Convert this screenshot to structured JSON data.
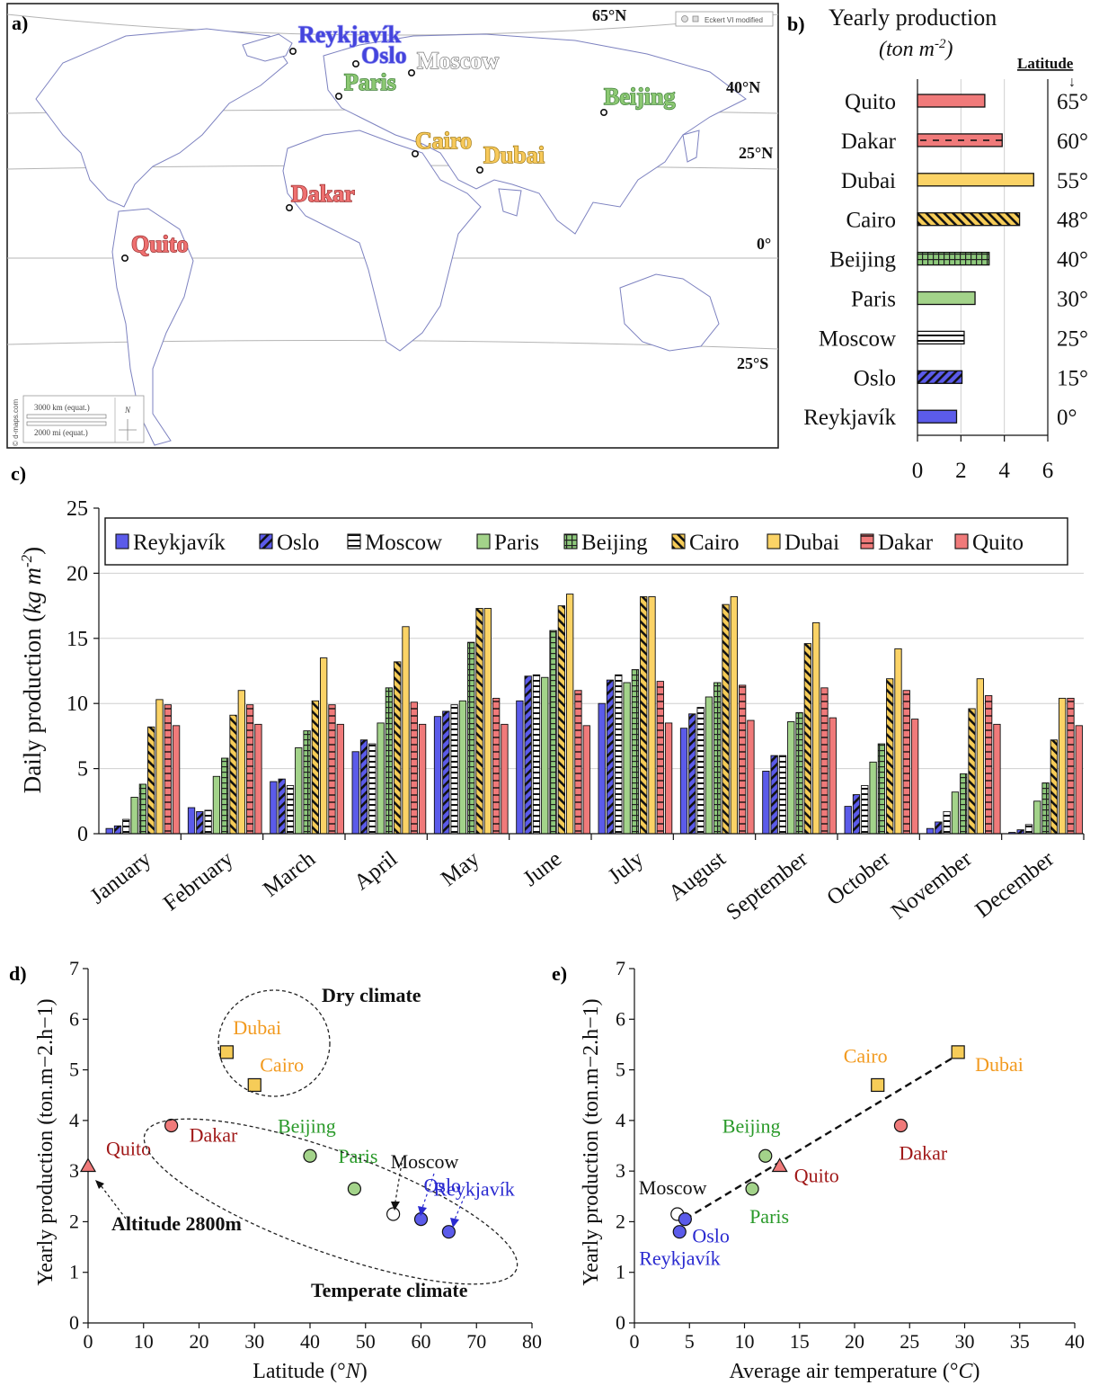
{
  "colors": {
    "reykjavik": "#5b5bea",
    "oslo": "#5b5bea",
    "moscow": "#ffffff",
    "paris": "#a3d38a",
    "beijing": "#8ec97c",
    "cairo": "#f6cc58",
    "dubai": "#fbd366",
    "dakar": "#f07a7a",
    "quito": "#f07a7a",
    "map_land_line": "#8a8fc4",
    "grid": "#cccccc"
  },
  "panel_a": {
    "label": "a)",
    "credit": "© d-maps.com",
    "projection": "Eckert VI modified",
    "scale_km": "3000 km (equat.)",
    "scale_mi": "2000 mi (equat.)",
    "north": "N",
    "latitudes": [
      "65°N",
      "40°N",
      "25°N",
      "0°",
      "25°S"
    ],
    "cities": [
      {
        "name": "Reykjavík",
        "color": "#4444dd",
        "stroke": "#9a9af0"
      },
      {
        "name": "Oslo",
        "color": "#4444dd",
        "stroke": "#9a9af0"
      },
      {
        "name": "Moscow",
        "color": "#ffffff",
        "stroke": "#7a7a7a"
      },
      {
        "name": "Paris",
        "color": "#8cc873",
        "stroke": "#3f7f3a"
      },
      {
        "name": "Beijing",
        "color": "#8cc873",
        "stroke": "#3f7f3a"
      },
      {
        "name": "Cairo",
        "color": "#f7c95a",
        "stroke": "#a07a18"
      },
      {
        "name": "Dubai",
        "color": "#f7c95a",
        "stroke": "#a07a18"
      },
      {
        "name": "Dakar",
        "color": "#ee7070",
        "stroke": "#9a2f2f"
      },
      {
        "name": "Quito",
        "color": "#ee7070",
        "stroke": "#9a2f2f"
      }
    ]
  },
  "panel_b": {
    "label": "b)",
    "title_line1": "Yearly production",
    "title_line2_a": "(ton m",
    "title_line2_sup": "-2",
    "title_line2_b": ")",
    "latitude_header": "Latitude",
    "arrow": "↓",
    "xticks": [
      "0",
      "2",
      "4",
      "6"
    ]
  },
  "panel_c": {
    "label": "c)",
    "ylabel_a": "Daily production (",
    "ylabel_unit": "kg m",
    "ylabel_sup": "-2",
    "ylabel_b": ")",
    "yticks": [
      "0",
      "5",
      "10",
      "15",
      "20",
      "25"
    ]
  },
  "panel_d": {
    "label": "d)",
    "xlabel_a": "Latitude (°",
    "xlabel_unit": "N",
    "xlabel_b": ")",
    "ylabel": "Yearly production (ton.m−2.h−1)",
    "xticks": [
      "0",
      "10",
      "20",
      "30",
      "40",
      "50",
      "60",
      "70",
      "80"
    ],
    "yticks": [
      "0",
      "1",
      "2",
      "3",
      "4",
      "5",
      "6",
      "7"
    ],
    "annotations": {
      "dry": "Dry climate",
      "temperate": "Temperate climate",
      "altitude": "Altitude 2800m"
    }
  },
  "panel_e": {
    "label": "e)",
    "xlabel_a": "Average air temperature (°",
    "xlabel_unit": "C",
    "xlabel_b": ")",
    "ylabel": "Yearly production (ton.m−2.h−1)",
    "xticks": [
      "0",
      "5",
      "10",
      "15",
      "20",
      "25",
      "30",
      "35",
      "40"
    ],
    "yticks": [
      "0",
      "1",
      "2",
      "3",
      "4",
      "5",
      "6",
      "7"
    ]
  },
  "chart_data": [
    {
      "id": "b",
      "type": "bar",
      "orientation": "horizontal",
      "title": "Yearly production (ton m-2)",
      "categories": [
        "Quito",
        "Dakar",
        "Dubai",
        "Cairo",
        "Beijing",
        "Paris",
        "Moscow",
        "Oslo",
        "Reykjavík"
      ],
      "values": [
        3.1,
        3.9,
        5.35,
        4.7,
        3.3,
        2.65,
        2.15,
        2.05,
        1.8
      ],
      "latitude_labels": [
        "65°",
        "60°",
        "55°",
        "48°",
        "40°",
        "30°",
        "25°",
        "15°",
        "0°"
      ],
      "xlim": [
        0,
        6
      ],
      "grid": "vertical"
    },
    {
      "id": "c",
      "type": "bar",
      "ylabel": "Daily production (kg m-2)",
      "ylim": [
        0,
        25
      ],
      "grid": true,
      "legend": "top",
      "categories": [
        "January",
        "February",
        "March",
        "April",
        "May",
        "June",
        "July",
        "August",
        "September",
        "October",
        "November",
        "December"
      ],
      "series": [
        {
          "name": "Reykjavík",
          "values": [
            0.4,
            2.0,
            4.0,
            6.3,
            9.0,
            10.2,
            10.0,
            8.1,
            4.8,
            2.1,
            0.4,
            0.1
          ]
        },
        {
          "name": "Oslo",
          "values": [
            0.6,
            1.7,
            4.2,
            7.2,
            9.4,
            12.1,
            11.8,
            9.2,
            6.0,
            3.0,
            0.9,
            0.3
          ]
        },
        {
          "name": "Moscow",
          "values": [
            1.1,
            1.8,
            3.7,
            6.9,
            9.9,
            12.2,
            12.2,
            9.7,
            6.0,
            3.7,
            1.7,
            0.7
          ]
        },
        {
          "name": "Paris",
          "values": [
            2.8,
            4.4,
            6.6,
            8.5,
            10.2,
            12.0,
            11.6,
            10.5,
            8.6,
            5.5,
            3.2,
            2.5
          ]
        },
        {
          "name": "Beijing",
          "values": [
            3.8,
            5.8,
            7.9,
            11.2,
            14.7,
            15.6,
            12.6,
            11.6,
            9.3,
            6.9,
            4.6,
            3.9
          ]
        },
        {
          "name": "Cairo",
          "values": [
            8.2,
            9.1,
            10.2,
            13.2,
            17.3,
            17.5,
            18.2,
            17.6,
            14.6,
            11.9,
            9.6,
            7.2
          ]
        },
        {
          "name": "Dubai",
          "values": [
            10.3,
            11.0,
            13.5,
            15.9,
            17.3,
            18.4,
            18.2,
            18.2,
            16.2,
            14.2,
            11.9,
            10.4
          ]
        },
        {
          "name": "Dakar",
          "values": [
            9.9,
            9.9,
            9.9,
            10.1,
            10.4,
            11.0,
            11.7,
            11.4,
            11.2,
            11.0,
            10.6,
            10.4
          ]
        },
        {
          "name": "Quito",
          "values": [
            8.3,
            8.4,
            8.4,
            8.4,
            8.4,
            8.3,
            8.5,
            8.7,
            8.9,
            8.8,
            8.4,
            8.3
          ]
        }
      ]
    },
    {
      "id": "d",
      "type": "scatter",
      "xlabel": "Latitude (°N)",
      "ylabel": "Yearly production (ton.m−2.h−1)",
      "xlim": [
        0,
        80
      ],
      "ylim": [
        0,
        7
      ],
      "points": [
        {
          "name": "Quito",
          "x": 0,
          "y": 3.1,
          "marker": "triangle"
        },
        {
          "name": "Dakar",
          "x": 15,
          "y": 3.9,
          "marker": "circle"
        },
        {
          "name": "Dubai",
          "x": 25,
          "y": 5.35,
          "marker": "square"
        },
        {
          "name": "Cairo",
          "x": 30,
          "y": 4.7,
          "marker": "square"
        },
        {
          "name": "Beijing",
          "x": 40,
          "y": 3.3,
          "marker": "circle"
        },
        {
          "name": "Paris",
          "x": 48,
          "y": 2.65,
          "marker": "circle"
        },
        {
          "name": "Moscow",
          "x": 55,
          "y": 2.15,
          "marker": "circle"
        },
        {
          "name": "Oslo",
          "x": 60,
          "y": 2.05,
          "marker": "circle"
        },
        {
          "name": "Reykjavík",
          "x": 65,
          "y": 1.8,
          "marker": "circle"
        }
      ]
    },
    {
      "id": "e",
      "type": "scatter",
      "xlabel": "Average air temperature (°C)",
      "ylabel": "Yearly production (ton.m−2.h−1)",
      "xlim": [
        0,
        40
      ],
      "ylim": [
        0,
        7
      ],
      "trendline": {
        "style": "dashed",
        "from": [
          4.6,
          2.05
        ],
        "to": [
          29.4,
          5.3
        ]
      },
      "points": [
        {
          "name": "Moscow",
          "x": 3.9,
          "y": 2.15,
          "marker": "circle"
        },
        {
          "name": "Reykjavík",
          "x": 4.1,
          "y": 1.8,
          "marker": "circle"
        },
        {
          "name": "Oslo",
          "x": 4.6,
          "y": 2.05,
          "marker": "circle"
        },
        {
          "name": "Paris",
          "x": 10.7,
          "y": 2.65,
          "marker": "circle"
        },
        {
          "name": "Beijing",
          "x": 11.9,
          "y": 3.3,
          "marker": "circle"
        },
        {
          "name": "Quito",
          "x": 13.2,
          "y": 3.1,
          "marker": "triangle"
        },
        {
          "name": "Cairo",
          "x": 22.1,
          "y": 4.7,
          "marker": "square"
        },
        {
          "name": "Dakar",
          "x": 24.2,
          "y": 3.9,
          "marker": "circle"
        },
        {
          "name": "Dubai",
          "x": 29.4,
          "y": 5.35,
          "marker": "square"
        }
      ]
    }
  ]
}
